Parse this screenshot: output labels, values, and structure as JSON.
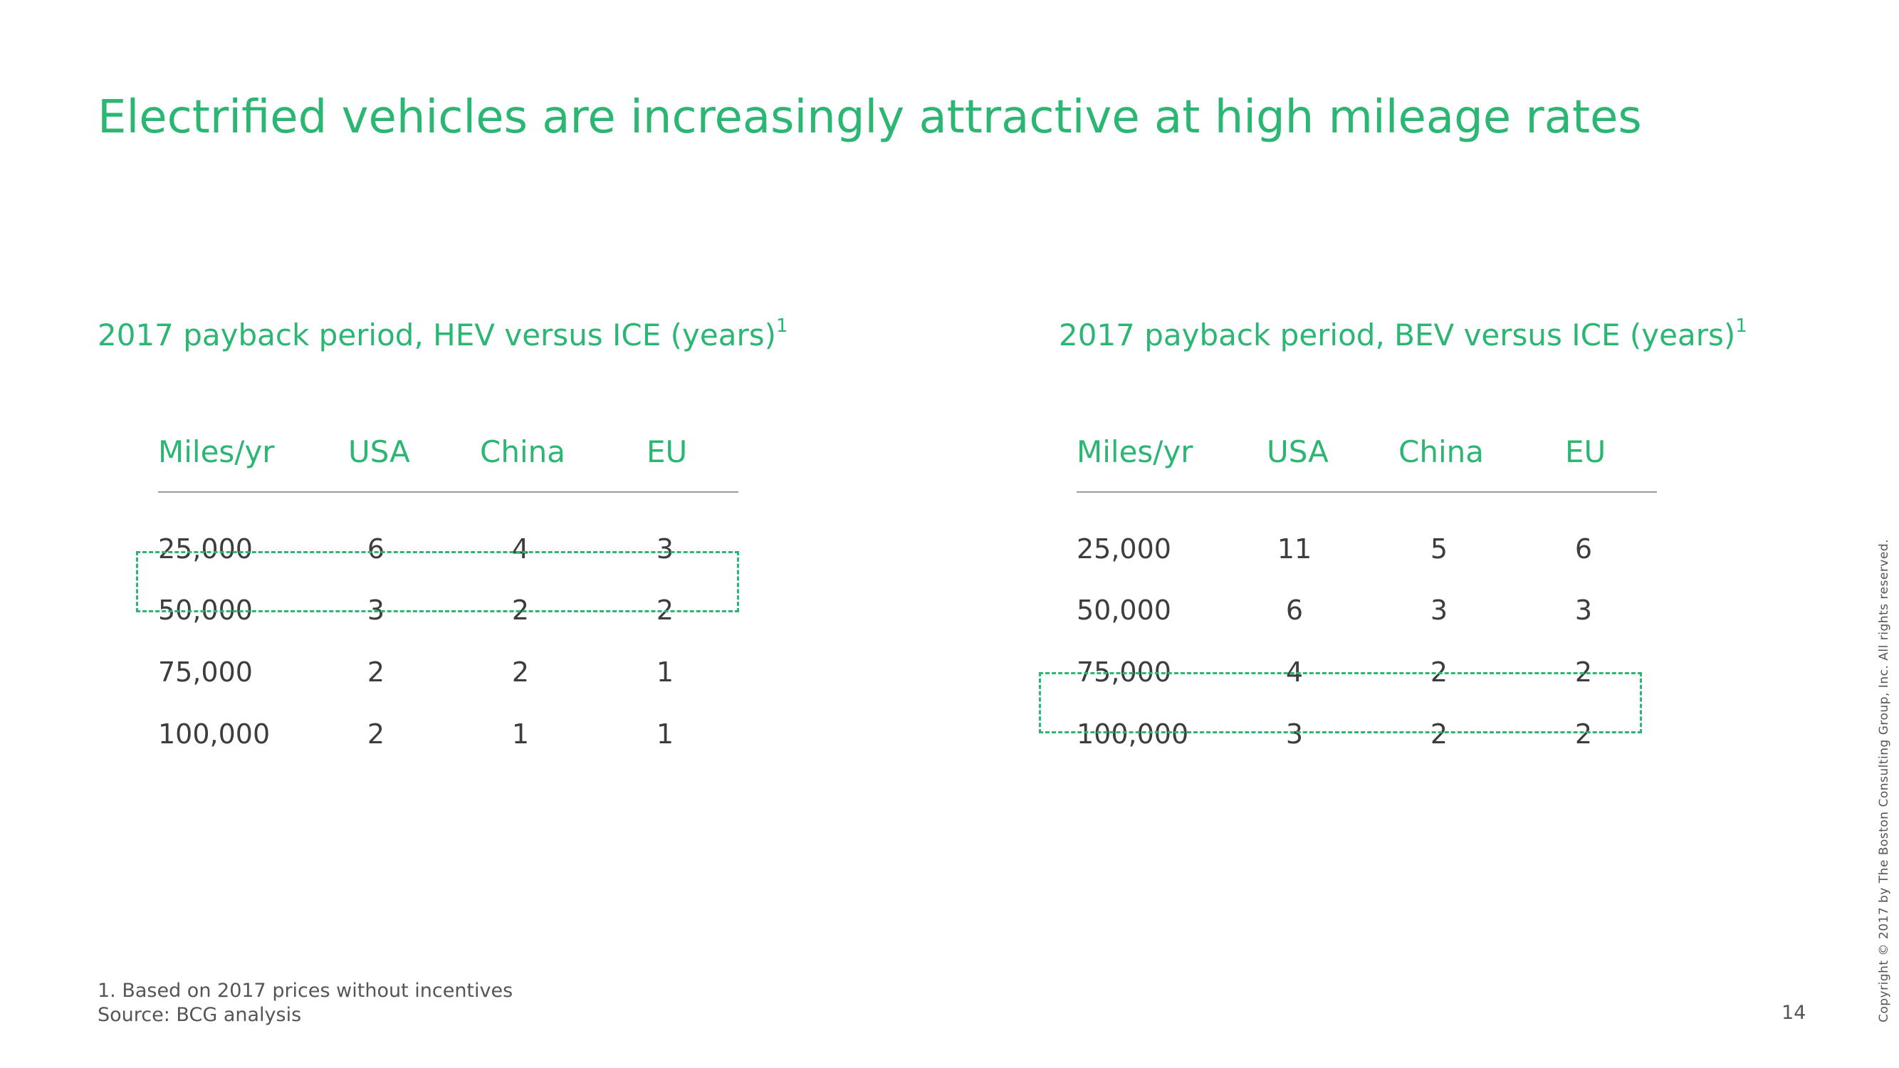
{
  "title": "Electrified vehicles are increasingly attractive at high mileage rates",
  "left_panel": {
    "title": "2017 payback period, HEV versus ICE (years)",
    "sup": "1",
    "headers": [
      "Miles/yr",
      "USA",
      "China",
      "EU"
    ],
    "rows": [
      [
        "25,000",
        "6",
        "4",
        "3"
      ],
      [
        "50,000",
        "3",
        "2",
        "2"
      ],
      [
        "75,000",
        "2",
        "2",
        "1"
      ],
      [
        "100,000",
        "2",
        "1",
        "1"
      ]
    ],
    "highlighted_row": "50,000"
  },
  "right_panel": {
    "title": "2017 payback period, BEV versus ICE (years)",
    "sup": "1",
    "headers": [
      "Miles/yr",
      "USA",
      "China",
      "EU"
    ],
    "rows": [
      [
        "25,000",
        "11",
        "5",
        "6"
      ],
      [
        "50,000",
        "6",
        "3",
        "3"
      ],
      [
        "75,000",
        "4",
        "2",
        "2"
      ],
      [
        "100,000",
        "3",
        "2",
        "2"
      ]
    ],
    "highlighted_row": "100,000"
  },
  "footnote": "1. Based on 2017 prices without incentives",
  "source": "Source: BCG analysis",
  "page_number": "14",
  "copyright": "Copyright © 2017 by The Boston Consulting Group, Inc. All rights reserved.",
  "colors": {
    "accent": "#2bb673",
    "text": "#3d3d3d",
    "rule": "#9a9a9a"
  }
}
